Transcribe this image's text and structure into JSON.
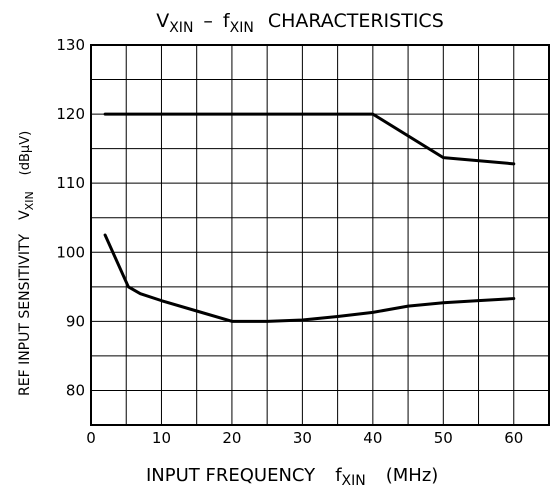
{
  "chart_data": {
    "type": "line",
    "title_parts": {
      "v": "V",
      "v_sub": "XIN",
      "dash": "–",
      "f": "f",
      "f_sub": "XIN",
      "rest": "CHARACTERISTICS"
    },
    "xlabel_parts": {
      "main": "INPUT FREQUENCY",
      "f": "f",
      "f_sub": "XIN",
      "unit": "(MHz)"
    },
    "ylabel_parts": {
      "main": "REF INPUT SENSITIVITY",
      "v": "V",
      "v_sub": "XIN",
      "unit": "(dBμV)"
    },
    "xlim": [
      0,
      65
    ],
    "ylim": [
      75,
      130
    ],
    "x_ticks": [
      0,
      10,
      20,
      30,
      40,
      50,
      60
    ],
    "y_ticks": [
      80,
      90,
      100,
      110,
      120,
      130
    ],
    "grid": true,
    "series": [
      {
        "x": [
          2,
          40,
          50,
          60
        ],
        "y": [
          120,
          120,
          113.7,
          112.8
        ]
      },
      {
        "x": [
          2,
          5.3,
          7,
          10,
          15,
          20,
          25,
          30,
          35,
          40,
          45,
          50,
          55,
          60
        ],
        "y": [
          102.5,
          95,
          94,
          93,
          91.5,
          90,
          90,
          90.2,
          90.7,
          91.3,
          92.2,
          92.7,
          93,
          93.3
        ]
      }
    ]
  }
}
